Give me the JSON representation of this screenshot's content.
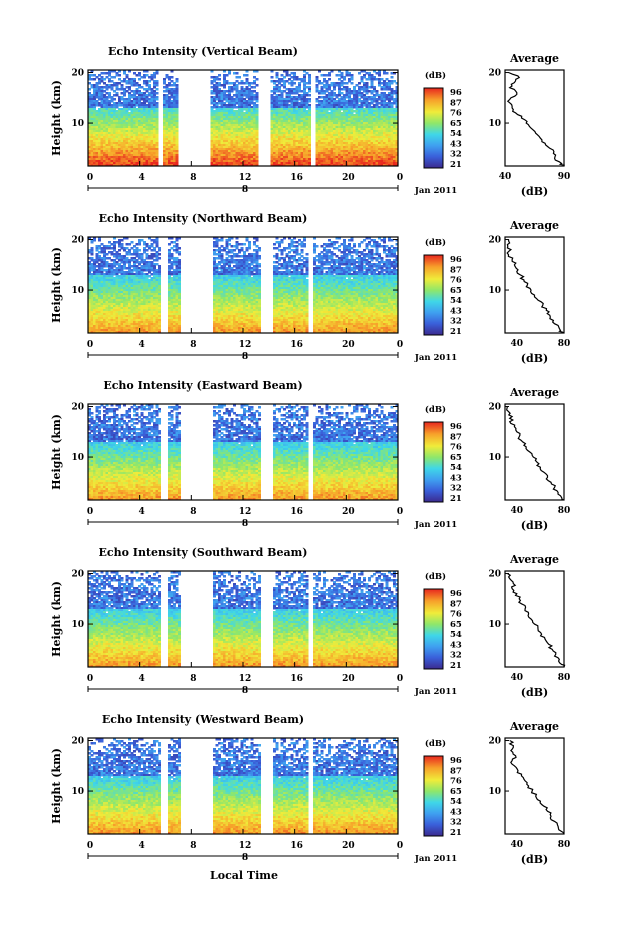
{
  "figure": {
    "xlabel": "Local Time",
    "date_label": "Jan 2011",
    "date_day": "8",
    "height_label": "Height (km)",
    "colorbar_unit": "(dB)",
    "average_title": "Average",
    "average_xlabel": "(dB)"
  },
  "chart_data": [
    {
      "type": "heatmap",
      "title": "Echo Intensity (Vertical Beam)",
      "xlabel": "",
      "ylabel": "Height (km)",
      "xlim": [
        0,
        24
      ],
      "ylim": [
        1.5,
        20.5
      ],
      "xticks": [
        "0",
        "4",
        "8",
        "12",
        "16",
        "20",
        "0"
      ],
      "yticks": [
        "20",
        "10"
      ],
      "colorbar_ticks": [
        "96",
        "87",
        "76",
        "65",
        "54",
        "43",
        "32",
        "21"
      ],
      "data_gaps_hours": [
        [
          5.4,
          5.9
        ],
        [
          7.0,
          9.5
        ],
        [
          13.2,
          14.2
        ],
        [
          17.3,
          17.6
        ]
      ],
      "average_profile": {
        "xlim": [
          40,
          90
        ],
        "xticks": [
          "40",
          "90"
        ],
        "yticks": [
          "20",
          "10"
        ],
        "height_km": [
          20,
          19,
          18,
          17,
          16,
          15,
          14,
          13,
          12,
          11,
          10,
          9,
          8,
          7,
          6,
          5,
          4,
          3,
          2,
          1.5
        ],
        "intensity_db": [
          43,
          52,
          48,
          44,
          50,
          45,
          44,
          46,
          49,
          54,
          58,
          62,
          66,
          70,
          74,
          78,
          81,
          82,
          88,
          90
        ]
      }
    },
    {
      "type": "heatmap",
      "title": "Echo Intensity (Northward Beam)",
      "xlabel": "",
      "ylabel": "Height (km)",
      "xlim": [
        0,
        24
      ],
      "ylim": [
        1.5,
        20.5
      ],
      "xticks": [
        "0",
        "4",
        "8",
        "12",
        "16",
        "20",
        "0"
      ],
      "yticks": [
        "20",
        "10"
      ],
      "colorbar_ticks": [
        "96",
        "87",
        "76",
        "65",
        "54",
        "43",
        "32",
        "21"
      ],
      "data_gaps_hours": [
        [
          5.6,
          6.2
        ],
        [
          7.1,
          9.7
        ],
        [
          13.3,
          14.3
        ],
        [
          17.1,
          17.4
        ]
      ],
      "average_profile": {
        "xlim": [
          30,
          80
        ],
        "xticks": [
          "40",
          "80"
        ],
        "yticks": [
          "20",
          "10"
        ],
        "height_km": [
          20,
          19,
          18,
          17,
          16,
          15,
          14,
          13,
          12,
          11,
          10,
          9,
          8,
          7,
          6,
          5,
          4,
          3,
          2,
          1.5
        ],
        "intensity_db": [
          33,
          32,
          35,
          33,
          36,
          38,
          41,
          43,
          46,
          49,
          52,
          55,
          58,
          62,
          65,
          68,
          71,
          75,
          77,
          80
        ]
      }
    },
    {
      "type": "heatmap",
      "title": "Echo Intensity (Eastward Beam)",
      "xlabel": "",
      "ylabel": "Height (km)",
      "xlim": [
        0,
        24
      ],
      "ylim": [
        1.5,
        20.5
      ],
      "xticks": [
        "0",
        "4",
        "8",
        "12",
        "16",
        "20",
        "0"
      ],
      "yticks": [
        "20",
        "10"
      ],
      "colorbar_ticks": [
        "96",
        "87",
        "76",
        "65",
        "54",
        "43",
        "32",
        "21"
      ],
      "data_gaps_hours": [
        [
          5.6,
          6.2
        ],
        [
          7.1,
          9.7
        ],
        [
          13.3,
          14.3
        ],
        [
          17.1,
          17.4
        ]
      ],
      "average_profile": {
        "xlim": [
          30,
          80
        ],
        "xticks": [
          "40",
          "80"
        ],
        "yticks": [
          "20",
          "10"
        ],
        "height_km": [
          20,
          19,
          18,
          17,
          16,
          15,
          14,
          13,
          12,
          11,
          10,
          9,
          8,
          7,
          6,
          5,
          4,
          3,
          2,
          1.5
        ],
        "intensity_db": [
          32,
          33,
          36,
          34,
          38,
          40,
          42,
          45,
          48,
          51,
          54,
          57,
          60,
          63,
          66,
          69,
          72,
          75,
          78,
          80
        ]
      }
    },
    {
      "type": "heatmap",
      "title": "Echo Intensity (Southward Beam)",
      "xlabel": "",
      "ylabel": "Height (km)",
      "xlim": [
        0,
        24
      ],
      "ylim": [
        1.5,
        20.5
      ],
      "xticks": [
        "0",
        "4",
        "8",
        "12",
        "16",
        "20",
        "0"
      ],
      "yticks": [
        "20",
        "10"
      ],
      "colorbar_ticks": [
        "96",
        "87",
        "76",
        "65",
        "54",
        "43",
        "32",
        "21"
      ],
      "data_gaps_hours": [
        [
          5.6,
          6.2
        ],
        [
          7.1,
          9.7
        ],
        [
          13.3,
          14.3
        ],
        [
          17.1,
          17.4
        ]
      ],
      "average_profile": {
        "xlim": [
          30,
          80
        ],
        "xticks": [
          "40",
          "80"
        ],
        "yticks": [
          "20",
          "10"
        ],
        "height_km": [
          20,
          19,
          18,
          17,
          16,
          15,
          14,
          13,
          12,
          11,
          10,
          9,
          8,
          7,
          6,
          5,
          4,
          3,
          2,
          1.5
        ],
        "intensity_db": [
          32,
          34,
          37,
          36,
          40,
          42,
          44,
          47,
          50,
          52,
          55,
          58,
          61,
          64,
          67,
          70,
          73,
          76,
          78,
          80
        ]
      }
    },
    {
      "type": "heatmap",
      "title": "Echo Intensity (Westward Beam)",
      "xlabel": "Local Time",
      "ylabel": "Height (km)",
      "xlim": [
        0,
        24
      ],
      "ylim": [
        1.5,
        20.5
      ],
      "xticks": [
        "0",
        "4",
        "8",
        "12",
        "16",
        "20",
        "0"
      ],
      "yticks": [
        "20",
        "10"
      ],
      "colorbar_ticks": [
        "96",
        "87",
        "76",
        "65",
        "54",
        "43",
        "32",
        "21"
      ],
      "data_gaps_hours": [
        [
          5.6,
          6.2
        ],
        [
          7.1,
          9.7
        ],
        [
          13.3,
          14.3
        ],
        [
          17.1,
          17.4
        ]
      ],
      "average_profile": {
        "xlim": [
          30,
          80
        ],
        "xticks": [
          "40",
          "80"
        ],
        "yticks": [
          "20",
          "10"
        ],
        "height_km": [
          20,
          19,
          18,
          17,
          16,
          15,
          14,
          13,
          12,
          11,
          10,
          9,
          8,
          7,
          6,
          5,
          4,
          3,
          2,
          1.5
        ],
        "intensity_db": [
          34,
          37,
          35,
          39,
          36,
          38,
          41,
          44,
          47,
          50,
          53,
          56,
          60,
          63,
          66,
          69,
          72,
          75,
          78,
          80
        ]
      }
    }
  ]
}
